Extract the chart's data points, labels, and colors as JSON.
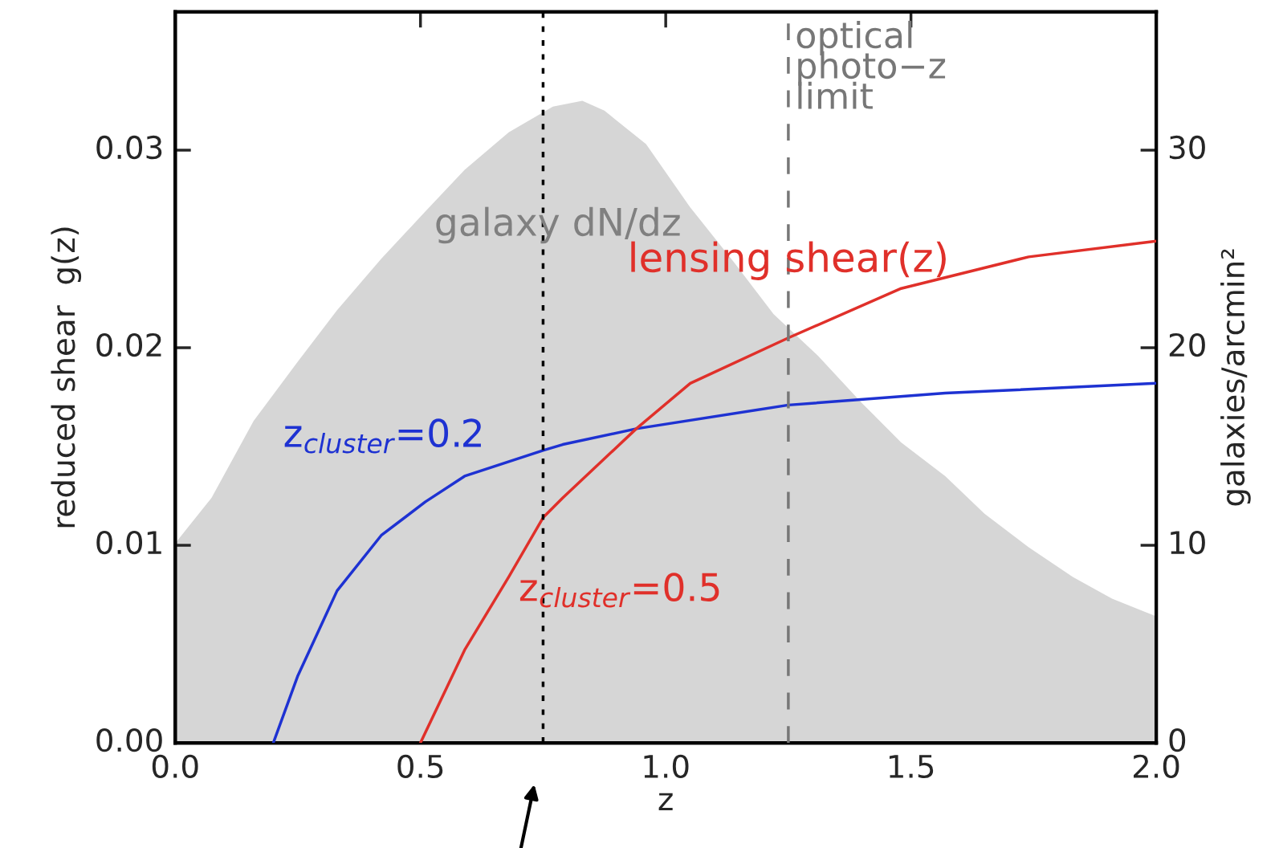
{
  "chart_data": {
    "type": "line",
    "xlabel": "z",
    "ylabel": "reduced shear  g(z)",
    "y2label": "galaxies/arcmin²",
    "xlim": [
      0,
      2.0
    ],
    "xticks": [
      {
        "value": 0,
        "label": "0.0"
      },
      0.5,
      {
        "value": 1,
        "label": "1.0"
      },
      1.5,
      {
        "value": 2,
        "label": "2.0"
      }
    ],
    "ylim": [
      0,
      0.037
    ],
    "yticks": [
      {
        "value": 0,
        "label": "0.00"
      },
      {
        "value": 0.01,
        "label": "0.01"
      },
      {
        "value": 0.02,
        "label": "0.02"
      },
      {
        "value": 0.03,
        "label": "0.03"
      }
    ],
    "y2lim": [
      0,
      37
    ],
    "y2ticks": [
      0,
      10,
      20,
      30
    ],
    "series": [
      {
        "name": "galaxy dN/dz",
        "type": "area",
        "axis": "y2",
        "color": "#d6d6d6",
        "x": [
          0,
          0.074,
          0.16,
          0.25,
          0.33,
          0.42,
          0.51,
          0.59,
          0.68,
          0.77,
          0.83,
          0.875,
          0.96,
          1.05,
          1.14,
          1.22,
          1.31,
          1.4,
          1.48,
          1.57,
          1.65,
          1.74,
          1.83,
          1.91,
          2.0
        ],
        "values": [
          10.1,
          12.4,
          16.3,
          19.3,
          21.9,
          24.5,
          26.9,
          29.0,
          30.9,
          32.2,
          32.5,
          32.0,
          30.3,
          27.1,
          24.3,
          21.7,
          19.6,
          17.2,
          15.2,
          13.5,
          11.6,
          9.9,
          8.4,
          7.3,
          6.4
        ]
      },
      {
        "name": "z$_{cluster}$=0.2",
        "type": "line",
        "color": "#1e32d2",
        "x": [
          0.2,
          0.25,
          0.33,
          0.42,
          0.51,
          0.59,
          0.75,
          0.79,
          0.94,
          1.25,
          1.57,
          2.0
        ],
        "values": [
          0,
          0.0034,
          0.0077,
          0.0105,
          0.0122,
          0.0135,
          0.0148,
          0.0151,
          0.0159,
          0.0171,
          0.0177,
          0.0182
        ]
      },
      {
        "name": "z$_{cluster}$=0.5",
        "type": "line",
        "color": "#e0302a",
        "x": [
          0.5,
          0.59,
          0.68,
          0.75,
          0.79,
          0.94,
          1.05,
          1.25,
          1.48,
          1.74,
          2.0
        ],
        "values": [
          0,
          0.0047,
          0.0084,
          0.0114,
          0.0124,
          0.0159,
          0.0182,
          0.0205,
          0.023,
          0.0246,
          0.0254
        ]
      }
    ],
    "annotations": [
      {
        "text": "lensing shear(z)",
        "x": 1.25,
        "y": 0.0244
      }
    ],
    "ref_lines": [
      {
        "axis": "x",
        "value": 0.75,
        "color": "#000000",
        "line_style": "dotted"
      },
      {
        "axis": "x",
        "value": 1.25,
        "color": "#777777",
        "line_style": "dashed",
        "label": "optical\nphoto−z\nlimit"
      }
    ],
    "grid": false,
    "legend": false
  }
}
